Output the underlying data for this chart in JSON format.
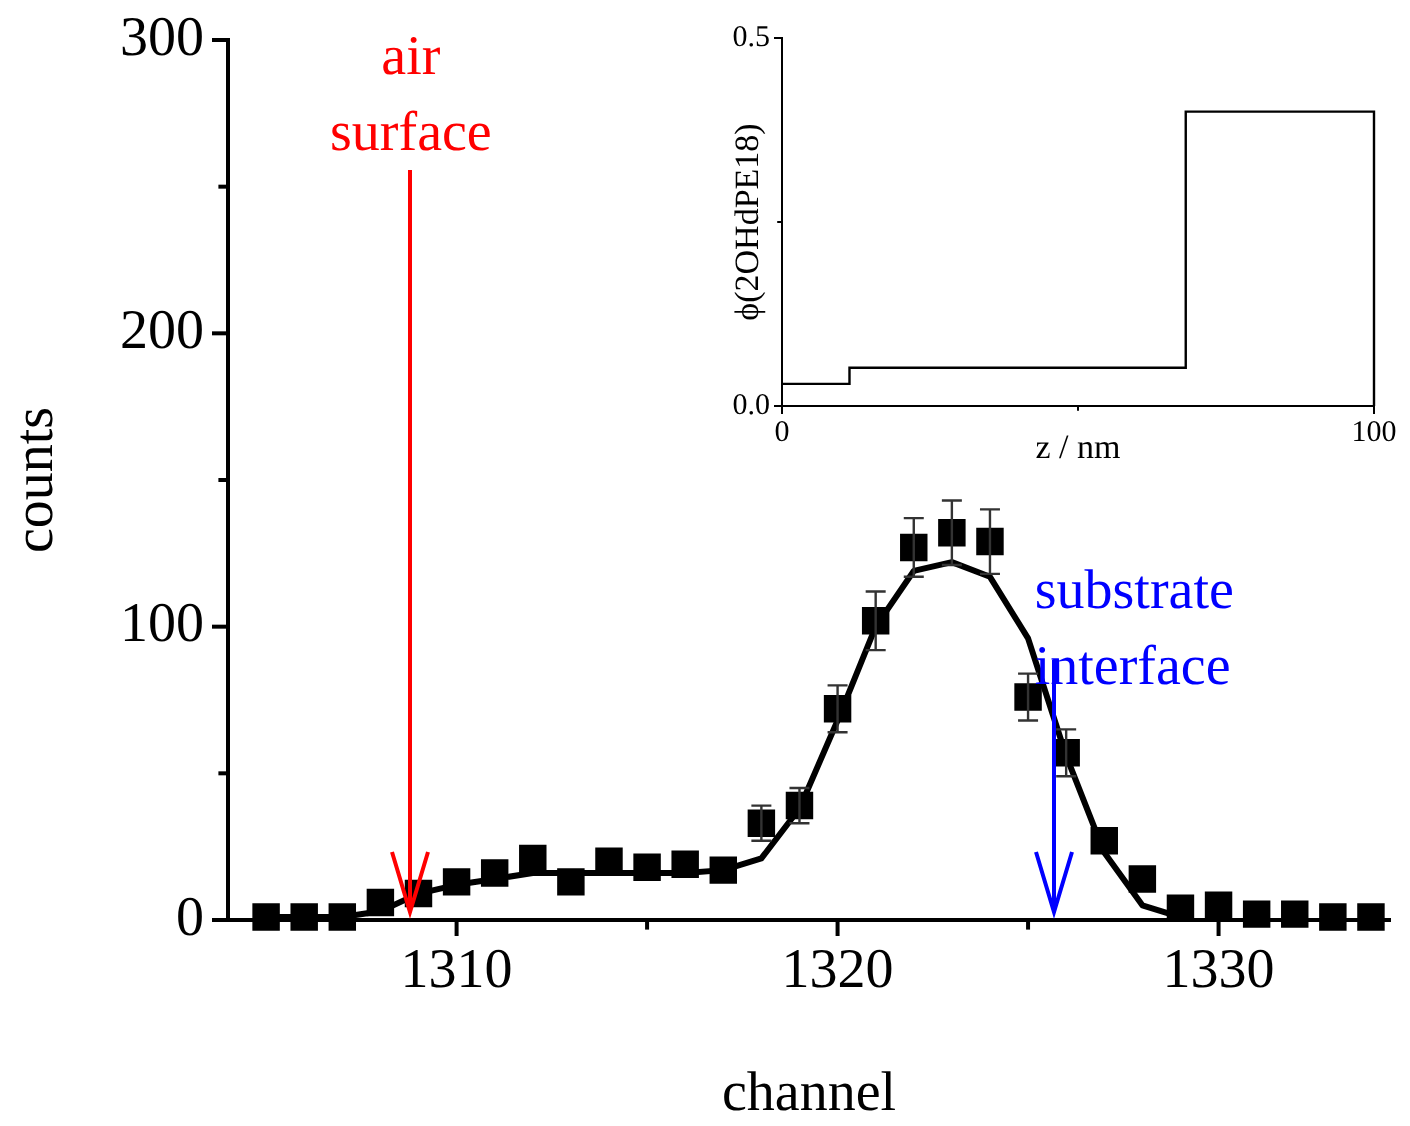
{
  "chart_data": [
    {
      "type": "scatter",
      "xlabel": "channel",
      "ylabel": "counts",
      "xlim": [
        1304,
        1334.5
      ],
      "xticks": [
        {
          "value": 1305,
          "label": null
        },
        1310,
        {
          "value": 1315,
          "label": null
        },
        1320,
        {
          "value": 1325,
          "label": null
        },
        1330
      ],
      "ylim": [
        0,
        300
      ],
      "yticks": [
        0,
        {
          "value": 50,
          "label": null
        },
        100,
        {
          "value": 150,
          "label": null
        },
        200,
        {
          "value": 250,
          "label": null
        },
        300
      ],
      "grid": false,
      "legend": false,
      "marker": "square",
      "series": [
        {
          "color": "#000000",
          "x": [
            1305,
            1306,
            1307,
            1308,
            1309,
            1310,
            1311,
            1312,
            1313,
            1314,
            1315,
            1316,
            1317,
            1318,
            1319,
            1320,
            1321,
            1322,
            1323,
            1324,
            1325,
            1326,
            1327,
            1328,
            1329,
            1330,
            1331,
            1332,
            1333,
            1334
          ],
          "values": [
            1,
            1,
            1,
            6,
            9,
            13,
            16,
            21,
            13,
            20,
            18,
            19,
            17,
            33,
            39,
            72,
            102,
            127,
            132,
            129,
            76,
            57,
            27,
            14,
            4,
            5,
            2,
            2,
            1,
            1
          ],
          "errors": [
            null,
            null,
            null,
            null,
            null,
            null,
            null,
            null,
            null,
            null,
            null,
            null,
            null,
            6,
            6,
            8,
            10,
            10,
            11,
            11,
            8,
            8,
            null,
            null,
            null,
            null,
            null,
            null,
            null,
            null
          ]
        },
        {
          "type": "line",
          "color": "#000000",
          "marker": "none",
          "x": [
            1305,
            1306,
            1307,
            1308,
            1309,
            1310,
            1311,
            1312,
            1313,
            1314,
            1315,
            1316,
            1317,
            1318,
            1319,
            1320,
            1321,
            1322,
            1323,
            1324,
            1325,
            1326,
            1327,
            1328,
            1329
          ],
          "values": [
            1,
            1,
            1,
            3,
            9,
            12,
            14,
            16,
            16,
            16,
            16,
            16,
            17,
            21,
            38,
            68,
            100,
            119,
            122,
            117,
            96,
            56,
            23,
            5,
            1
          ]
        }
      ],
      "ref_lines": [
        {
          "axis": "x",
          "value": 1308.8,
          "label": "air surface",
          "color": "#ff0000"
        },
        {
          "axis": "x",
          "value": 1325.7,
          "label": "substrate interface",
          "color": "#0000ff"
        }
      ]
    },
    {
      "type": "step",
      "xlabel": "z / nm",
      "ylabel": "ϕ(2OHdPE18)",
      "xlim": [
        0,
        100
      ],
      "xticks": [
        0,
        {
          "value": 50,
          "label": null
        },
        100
      ],
      "ylim": [
        0,
        0.5
      ],
      "yticks": [
        {
          "value": 0,
          "label": "0.0"
        },
        {
          "value": 0.25,
          "label": null
        },
        0.5
      ],
      "grid": false,
      "legend": false,
      "marker": "none",
      "series": [
        {
          "color": "#000000",
          "x": [
            0,
            11.4,
            68.2,
            100
          ],
          "values": [
            0.03,
            0.052,
            0.4,
            0
          ]
        }
      ]
    }
  ]
}
